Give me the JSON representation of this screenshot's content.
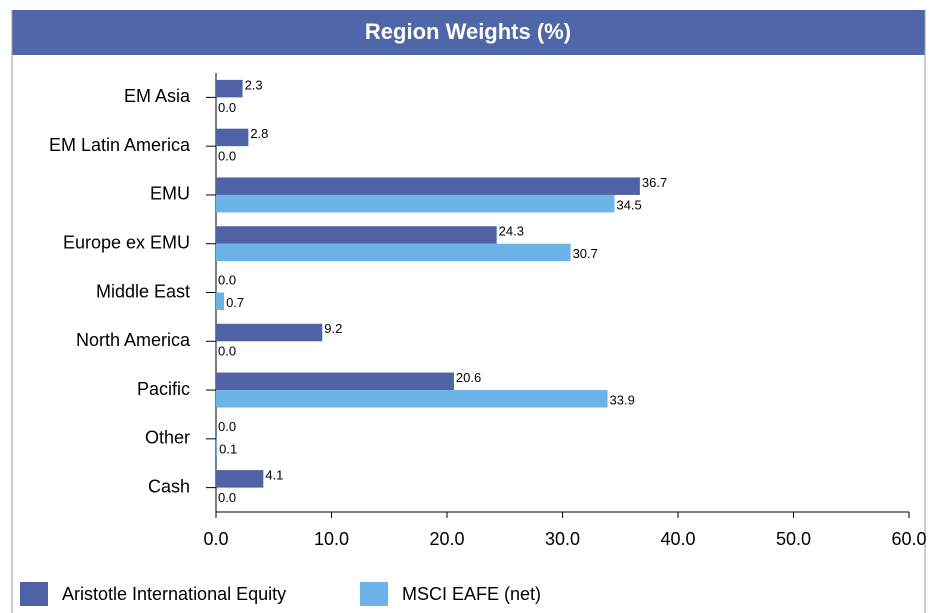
{
  "chart_data": {
    "type": "bar",
    "orientation": "horizontal",
    "title": "Region Weights (%)",
    "categories": [
      "EM Asia",
      "EM Latin America",
      "EMU",
      "Europe ex EMU",
      "Middle East",
      "North America",
      "Pacific",
      "Other",
      "Cash"
    ],
    "series": [
      {
        "name": "Aristotle International Equity",
        "color": "#4f62a6",
        "values": [
          2.3,
          2.8,
          36.7,
          24.3,
          0.0,
          9.2,
          20.6,
          0.0,
          4.1
        ],
        "value_labels": [
          "2.3",
          "2.8",
          "36.7",
          "24.3",
          "0.0",
          "9.2",
          "20.6",
          "0.0",
          "4.1"
        ]
      },
      {
        "name": "MSCI EAFE (net)",
        "color": "#6cb4e8",
        "values": [
          0.0,
          0.0,
          34.5,
          30.7,
          0.7,
          0.0,
          33.9,
          0.1,
          0.0
        ],
        "value_labels": [
          "0.0",
          "0.0",
          "34.5",
          "30.7",
          "0.7",
          "0.0",
          "33.9",
          "0.1",
          "0.0"
        ]
      }
    ],
    "xlim": [
      0,
      60
    ],
    "xticks": [
      {
        "value": 0,
        "label": "0.0"
      },
      {
        "value": 10,
        "label": "10.0"
      },
      {
        "value": 20,
        "label": "20.0"
      },
      {
        "value": 30,
        "label": "30.0"
      },
      {
        "value": 40,
        "label": "40.0"
      },
      {
        "value": 50,
        "label": "50.0"
      },
      {
        "value": 60,
        "label": "60.0"
      }
    ],
    "legend": "bottom"
  }
}
